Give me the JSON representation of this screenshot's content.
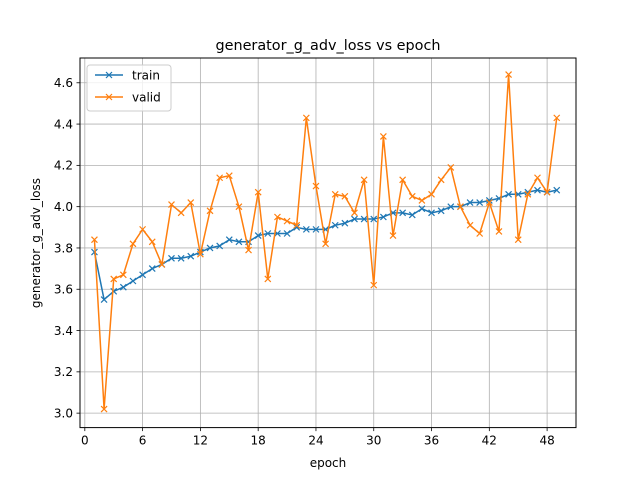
{
  "chart_data": {
    "type": "line",
    "title": "generator_g_adv_loss vs epoch",
    "xlabel": "epoch",
    "ylabel": "generator_g_adv_loss",
    "xlim": [
      -0.5,
      51.0
    ],
    "ylim": [
      2.93,
      4.72
    ],
    "xticks": [
      0,
      6,
      12,
      18,
      24,
      30,
      36,
      42,
      48
    ],
    "yticks": [
      3.0,
      3.2,
      3.4,
      3.6,
      3.8,
      4.0,
      4.2,
      4.4,
      4.6
    ],
    "grid": true,
    "legend_position": "top-left",
    "marker": "x",
    "x": [
      1,
      2,
      3,
      4,
      5,
      6,
      7,
      8,
      9,
      10,
      11,
      12,
      13,
      14,
      15,
      16,
      17,
      18,
      19,
      20,
      21,
      22,
      23,
      24,
      25,
      26,
      27,
      28,
      29,
      30,
      31,
      32,
      33,
      34,
      35,
      36,
      37,
      38,
      39,
      40,
      41,
      42,
      43,
      44,
      45,
      46,
      47,
      48,
      49
    ],
    "series": [
      {
        "name": "train",
        "color": "#1f77b4",
        "values": [
          3.78,
          3.55,
          3.59,
          3.61,
          3.64,
          3.67,
          3.7,
          3.72,
          3.75,
          3.75,
          3.76,
          3.78,
          3.8,
          3.81,
          3.84,
          3.83,
          3.83,
          3.86,
          3.87,
          3.87,
          3.87,
          3.9,
          3.89,
          3.89,
          3.89,
          3.91,
          3.92,
          3.94,
          3.94,
          3.94,
          3.95,
          3.97,
          3.97,
          3.96,
          3.99,
          3.97,
          3.98,
          4.0,
          4.0,
          4.02,
          4.02,
          4.03,
          4.04,
          4.06,
          4.06,
          4.07,
          4.08,
          4.07,
          4.08
        ]
      },
      {
        "name": "valid",
        "color": "#ff7f0e",
        "values": [
          3.84,
          3.02,
          3.65,
          3.67,
          3.82,
          3.89,
          3.83,
          3.72,
          4.01,
          3.97,
          4.02,
          3.77,
          3.98,
          4.14,
          4.15,
          4.0,
          3.79,
          4.07,
          3.65,
          3.95,
          3.93,
          3.91,
          4.43,
          4.1,
          3.82,
          4.06,
          4.05,
          3.97,
          4.13,
          3.62,
          4.34,
          3.86,
          4.13,
          4.05,
          4.03,
          4.06,
          4.13,
          4.19,
          4.0,
          3.91,
          3.87,
          4.02,
          3.88,
          4.64,
          3.84,
          4.06,
          4.14,
          4.07,
          4.43
        ]
      }
    ]
  }
}
